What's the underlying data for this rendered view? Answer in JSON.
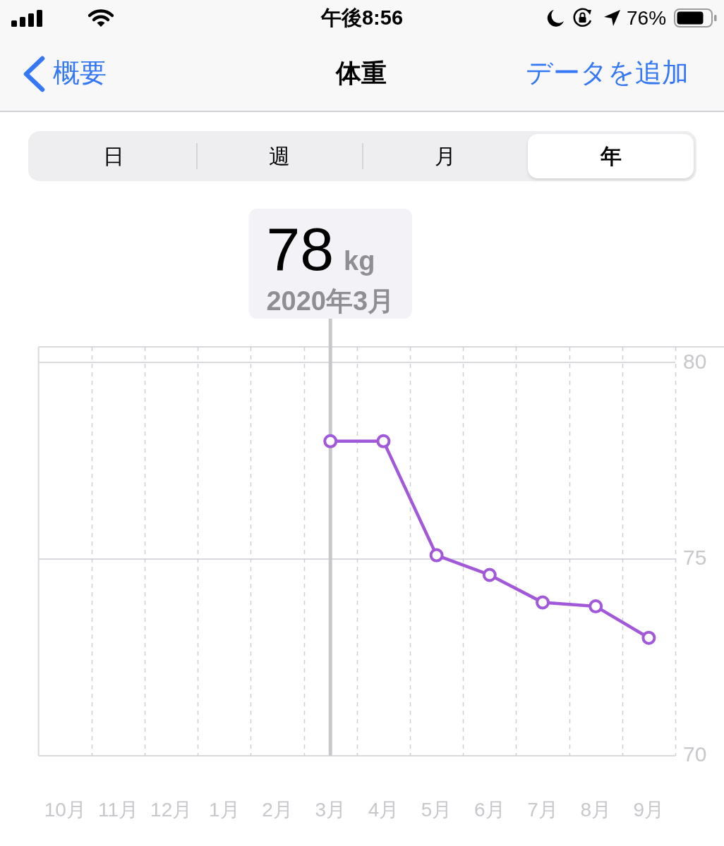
{
  "chart_data": {
    "type": "line",
    "title": "体重",
    "categories": [
      "10月",
      "11月",
      "12月",
      "1月",
      "2月",
      "3月",
      "4月",
      "5月",
      "6月",
      "7月",
      "8月",
      "9月"
    ],
    "series": [
      {
        "color": "#a259d9",
        "values": [
          null,
          null,
          null,
          null,
          null,
          78,
          78,
          75.1,
          74.6,
          73.9,
          73.8,
          73.0
        ]
      }
    ],
    "ylim": [
      70,
      80.4
    ],
    "yticks": [
      70,
      75,
      80
    ],
    "grid": true,
    "legend": false,
    "marker": "circle",
    "line_style": "solid",
    "ref_lines": [
      {
        "axis": "x",
        "value": "3月",
        "label": "78 kg",
        "color": "#c7c7cc"
      }
    ],
    "annotations": [
      "2020年3月",
      "午後8:56",
      "76%",
      "概要",
      "データを追加",
      "日",
      "週",
      "月",
      "年"
    ]
  }
}
